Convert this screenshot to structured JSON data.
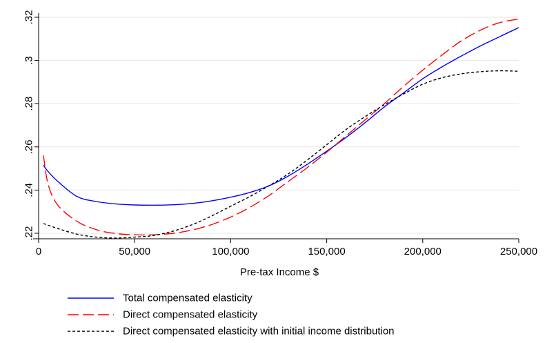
{
  "chart_data": {
    "type": "line",
    "title": "",
    "xlabel": "Pre-tax Income $",
    "ylabel": "",
    "xlim": [
      0,
      250000
    ],
    "ylim": [
      0.22,
      0.32
    ],
    "x_ticks": [
      0,
      50000,
      100000,
      150000,
      200000,
      250000
    ],
    "x_tick_labels": [
      "0",
      "50,000",
      "100,000",
      "150,000",
      "200,000",
      "250,000"
    ],
    "y_ticks": [
      0.22,
      0.24,
      0.26,
      0.28,
      0.3,
      0.32
    ],
    "y_tick_labels": [
      ".22",
      ".24",
      ".26",
      ".28",
      ".3",
      ".32"
    ],
    "grid": "horizontal",
    "legend_position": "bottom",
    "series": [
      {
        "name": "Total compensated elasticity",
        "color": "#0000ff",
        "dash": "solid",
        "x": [
          2500,
          5000,
          10000,
          20000,
          30000,
          40000,
          50000,
          60000,
          70000,
          80000,
          90000,
          100000,
          110000,
          120000,
          130000,
          140000,
          150000,
          160000,
          170000,
          180000,
          190000,
          200000,
          210000,
          220000,
          230000,
          240000,
          250000
        ],
        "y": [
          0.2515,
          0.2485,
          0.244,
          0.237,
          0.2347,
          0.2336,
          0.2331,
          0.233,
          0.2332,
          0.2338,
          0.235,
          0.2367,
          0.2389,
          0.242,
          0.2465,
          0.252,
          0.258,
          0.2643,
          0.2712,
          0.2785,
          0.285,
          0.2915,
          0.297,
          0.302,
          0.3067,
          0.311,
          0.3152
        ]
      },
      {
        "name": "Direct compensated elasticity",
        "color": "#ff0000",
        "dash": "long-dash",
        "x": [
          2500,
          5000,
          10000,
          20000,
          30000,
          40000,
          50000,
          60000,
          70000,
          80000,
          90000,
          100000,
          110000,
          120000,
          130000,
          140000,
          150000,
          160000,
          170000,
          180000,
          190000,
          200000,
          210000,
          220000,
          230000,
          240000,
          250000
        ],
        "y": [
          0.256,
          0.2425,
          0.233,
          0.2255,
          0.2217,
          0.2199,
          0.2193,
          0.2193,
          0.22,
          0.2215,
          0.224,
          0.2275,
          0.232,
          0.2375,
          0.244,
          0.2505,
          0.2575,
          0.265,
          0.2725,
          0.28,
          0.288,
          0.2955,
          0.3025,
          0.309,
          0.314,
          0.3175,
          0.3192
        ]
      },
      {
        "name": "Direct compensated elasticity with initial income distribution",
        "color": "#000000",
        "dash": "short-dash",
        "x": [
          2500,
          10000,
          20000,
          30000,
          40000,
          50000,
          60000,
          70000,
          80000,
          90000,
          100000,
          110000,
          120000,
          130000,
          140000,
          150000,
          160000,
          170000,
          180000,
          190000,
          200000,
          210000,
          220000,
          230000,
          240000,
          250000
        ],
        "y": [
          0.2245,
          0.2222,
          0.2196,
          0.2182,
          0.2178,
          0.2182,
          0.219,
          0.221,
          0.224,
          0.228,
          0.2325,
          0.237,
          0.242,
          0.2475,
          0.254,
          0.261,
          0.268,
          0.274,
          0.2795,
          0.2845,
          0.289,
          0.292,
          0.2938,
          0.2948,
          0.2952,
          0.295
        ]
      }
    ]
  }
}
